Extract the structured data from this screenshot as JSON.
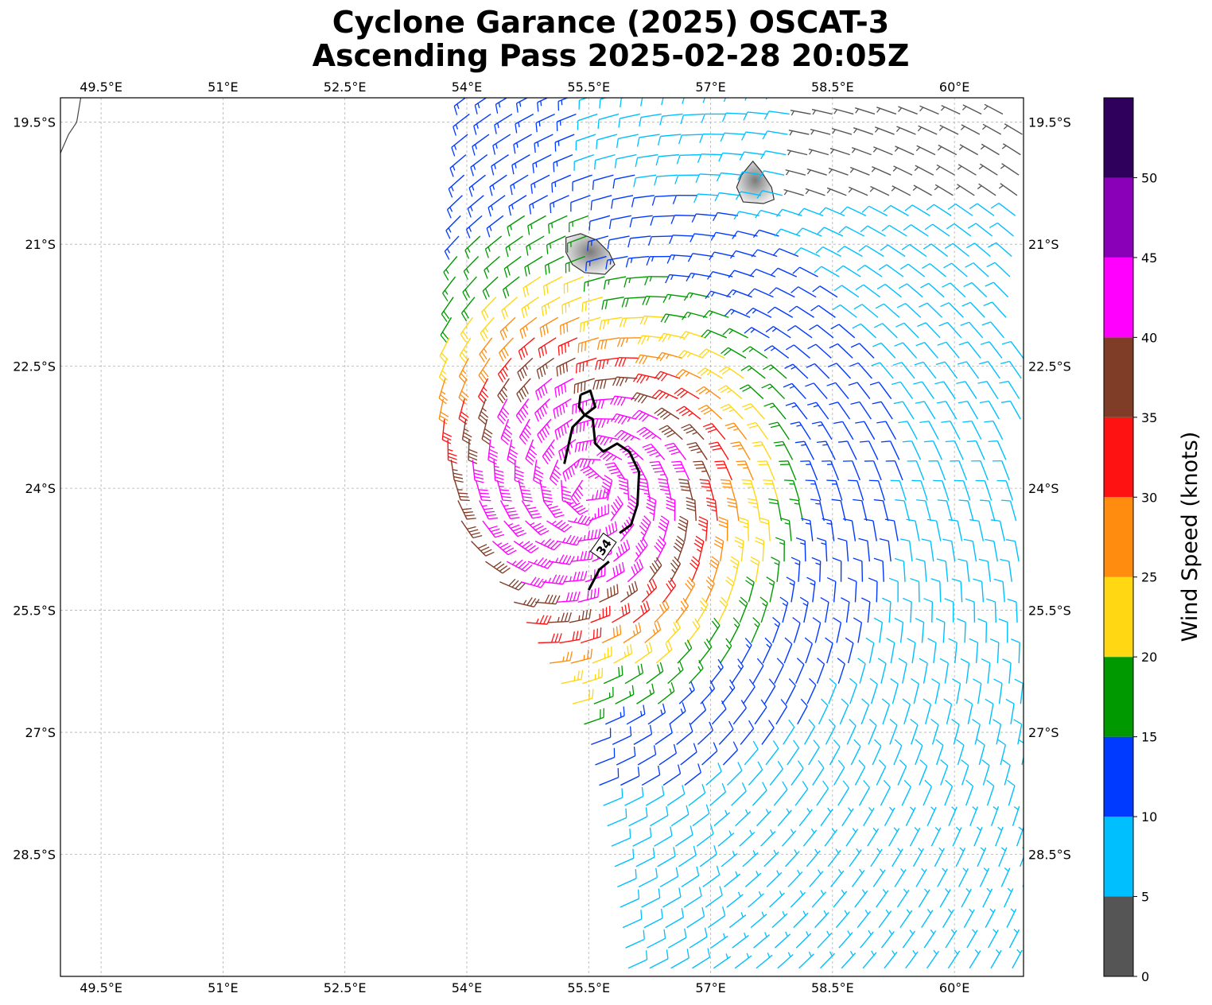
{
  "title": {
    "line1": "Cyclone Garance (2025) OSCAT-3",
    "line2": "Ascending Pass 2025-02-28 20:05Z"
  },
  "map": {
    "lon_range": [
      49.0,
      60.85
    ],
    "lat_range": [
      -30.0,
      -19.2
    ],
    "lon_ticks": [
      49.5,
      51,
      52.5,
      54,
      55.5,
      57,
      58.5,
      60
    ],
    "lon_tick_labels": [
      "49.5°E",
      "51°E",
      "52.5°E",
      "54°E",
      "55.5°E",
      "57°E",
      "58.5°E",
      "60°E"
    ],
    "lat_ticks": [
      -19.5,
      -21,
      -22.5,
      -24,
      -25.5,
      -27,
      -28.5
    ],
    "lat_tick_labels": [
      "19.5°S",
      "21°S",
      "22.5°S",
      "24°S",
      "25.5°S",
      "27°S",
      "28.5°S"
    ],
    "contour_label": "34",
    "contour_level_kt": 34,
    "gridlines": true,
    "swath_west_edge": [
      [
        54.05,
        -19.2
      ],
      [
        53.85,
        -21.5
      ],
      [
        53.7,
        -23.0
      ],
      [
        53.95,
        -24.5
      ],
      [
        54.65,
        -25.5
      ],
      [
        55.5,
        -27.0
      ],
      [
        55.8,
        -28.5
      ],
      [
        56.0,
        -30.0
      ]
    ],
    "coastline": [
      [
        49.0,
        -19.88
      ],
      [
        49.1,
        -19.65
      ],
      [
        49.2,
        -19.5
      ],
      [
        49.25,
        -19.2
      ]
    ],
    "islands": [
      {
        "name": "reunion-island",
        "outline": [
          [
            55.22,
            -20.92
          ],
          [
            55.4,
            -20.87
          ],
          [
            55.6,
            -20.95
          ],
          [
            55.75,
            -21.1
          ],
          [
            55.82,
            -21.25
          ],
          [
            55.7,
            -21.37
          ],
          [
            55.45,
            -21.35
          ],
          [
            55.3,
            -21.25
          ],
          [
            55.22,
            -21.1
          ]
        ]
      },
      {
        "name": "mauritius-island",
        "outline": [
          [
            57.52,
            -19.98
          ],
          [
            57.62,
            -20.1
          ],
          [
            57.75,
            -20.3
          ],
          [
            57.78,
            -20.45
          ],
          [
            57.65,
            -20.5
          ],
          [
            57.4,
            -20.48
          ],
          [
            57.32,
            -20.3
          ],
          [
            57.38,
            -20.15
          ]
        ]
      }
    ],
    "contour_34kt": [
      [
        [
          55.2,
          -23.7
        ],
        [
          55.3,
          -23.25
        ],
        [
          55.45,
          -23.1
        ],
        [
          55.55,
          -23.15
        ],
        [
          55.58,
          -23.45
        ],
        [
          55.68,
          -23.55
        ],
        [
          55.85,
          -23.45
        ],
        [
          56.0,
          -23.55
        ],
        [
          56.12,
          -23.8
        ],
        [
          56.1,
          -24.2
        ],
        [
          56.02,
          -24.45
        ],
        [
          55.88,
          -24.55
        ]
      ],
      [
        [
          55.75,
          -24.9
        ],
        [
          55.63,
          -25.0
        ],
        [
          55.5,
          -25.25
        ]
      ],
      [
        [
          55.4,
          -22.85
        ],
        [
          55.52,
          -22.8
        ],
        [
          55.58,
          -23.0
        ],
        [
          55.45,
          -23.1
        ],
        [
          55.38,
          -23.0
        ],
        [
          55.4,
          -22.85
        ]
      ]
    ]
  },
  "colorbar": {
    "label": "Wind Speed (knots)",
    "colors": [
      "#555555",
      "#00bfff",
      "#0039ff",
      "#009900",
      "#ffd713",
      "#ff8c0e",
      "#ff1212",
      "#7f3c27",
      "#ff00ff",
      "#8a00b8",
      "#2f005c"
    ],
    "ticks": [
      0,
      5,
      10,
      15,
      20,
      25,
      30,
      35,
      40,
      45,
      50
    ],
    "max": 55
  },
  "wind_field": {
    "grid_spacing_deg": 0.25,
    "barb_unit_kt": 5,
    "note_units": "knots"
  }
}
